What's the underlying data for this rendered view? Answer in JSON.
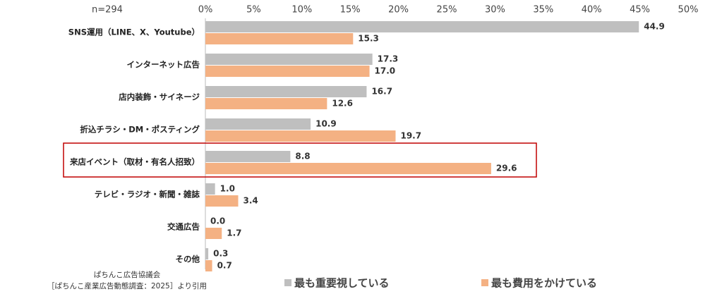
{
  "chart_data": {
    "type": "hbar",
    "subtitle": "n=294",
    "source": [
      "ぱちんこ広告協議会",
      "［ぱちんこ産業広告動態調査：2025］より引用"
    ],
    "categories": [
      "SNS運用（LINE、X、Youtube）",
      "インターネット広告",
      "店内装飾・サイネージ",
      "折込チラシ・DM・ポスティング",
      "来店イベント（取材・有名人招致）",
      "テレビ・ラジオ・新聞・雑誌",
      "交通広告",
      "その他"
    ],
    "series": [
      {
        "name": "最も重要視している",
        "color": "#bfbfbf",
        "values": [
          44.9,
          17.3,
          16.7,
          10.9,
          8.8,
          1,
          0,
          0.3
        ],
        "value_labels": [
          "44.9",
          "17.3",
          "16.7",
          "10.9",
          "8.8",
          "1.0",
          "0.0",
          "0.3"
        ]
      },
      {
        "name": "最も費用をかけている",
        "color": "#f4b183",
        "values": [
          15.3,
          17,
          12.6,
          19.7,
          29.6,
          3.4,
          1.7,
          0.7
        ],
        "value_labels": [
          "15.3",
          "17.0",
          "12.6",
          "19.7",
          "29.6",
          "3.4",
          "1.7",
          "0.7"
        ]
      }
    ],
    "xlim": [
      0,
      50
    ],
    "xticks": [
      {
        "value": 0,
        "label": "0%"
      },
      {
        "value": 5,
        "label": "5%"
      },
      {
        "value": 10,
        "label": "10%"
      },
      {
        "value": 15,
        "label": "15%"
      },
      {
        "value": 20,
        "label": "20%"
      },
      {
        "value": 25,
        "label": "25%"
      },
      {
        "value": 30,
        "label": "30%"
      },
      {
        "value": 35,
        "label": "35%"
      },
      {
        "value": 40,
        "label": "40%"
      },
      {
        "value": 45,
        "label": "45%"
      },
      {
        "value": 50,
        "label": "50%"
      }
    ],
    "grid": false,
    "highlight": {
      "index": 4,
      "color": "#c00000"
    }
  }
}
